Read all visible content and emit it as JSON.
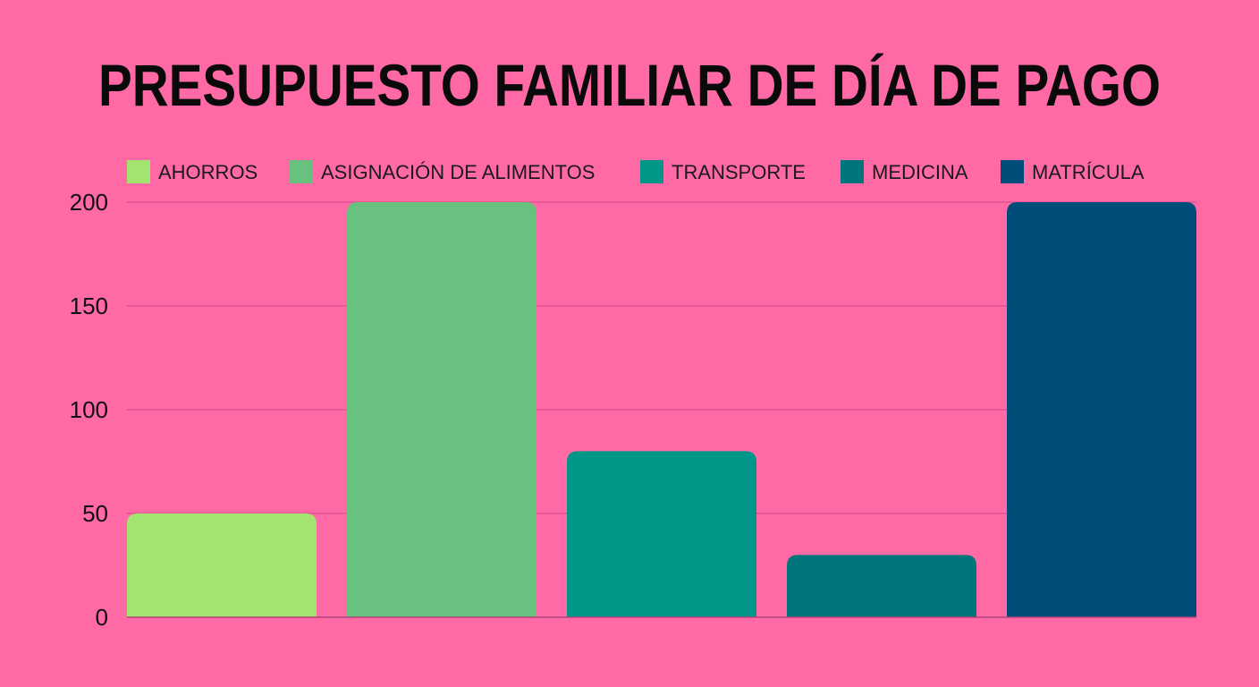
{
  "chart_data": {
    "type": "bar",
    "title": "PRESUPUESTO FAMILIAR DE DÍA DE PAGO",
    "categories": [
      "AHORROS",
      "ASIGNACIÓN DE ALIMENTOS",
      "TRANSPORTE",
      "MEDICINA",
      "MATRÍCULA"
    ],
    "values": [
      50,
      200,
      80,
      30,
      200
    ],
    "colors": [
      "#a3e36f",
      "#68c17f",
      "#009688",
      "#00767c",
      "#004d7a"
    ],
    "xlabel": "",
    "ylabel": "",
    "ylim": [
      0,
      200
    ],
    "yticks": [
      0,
      50,
      100,
      150,
      200
    ],
    "grid": true,
    "legend_position": "top",
    "background": "#ff69a6",
    "gridline_color": "#d9508e"
  }
}
